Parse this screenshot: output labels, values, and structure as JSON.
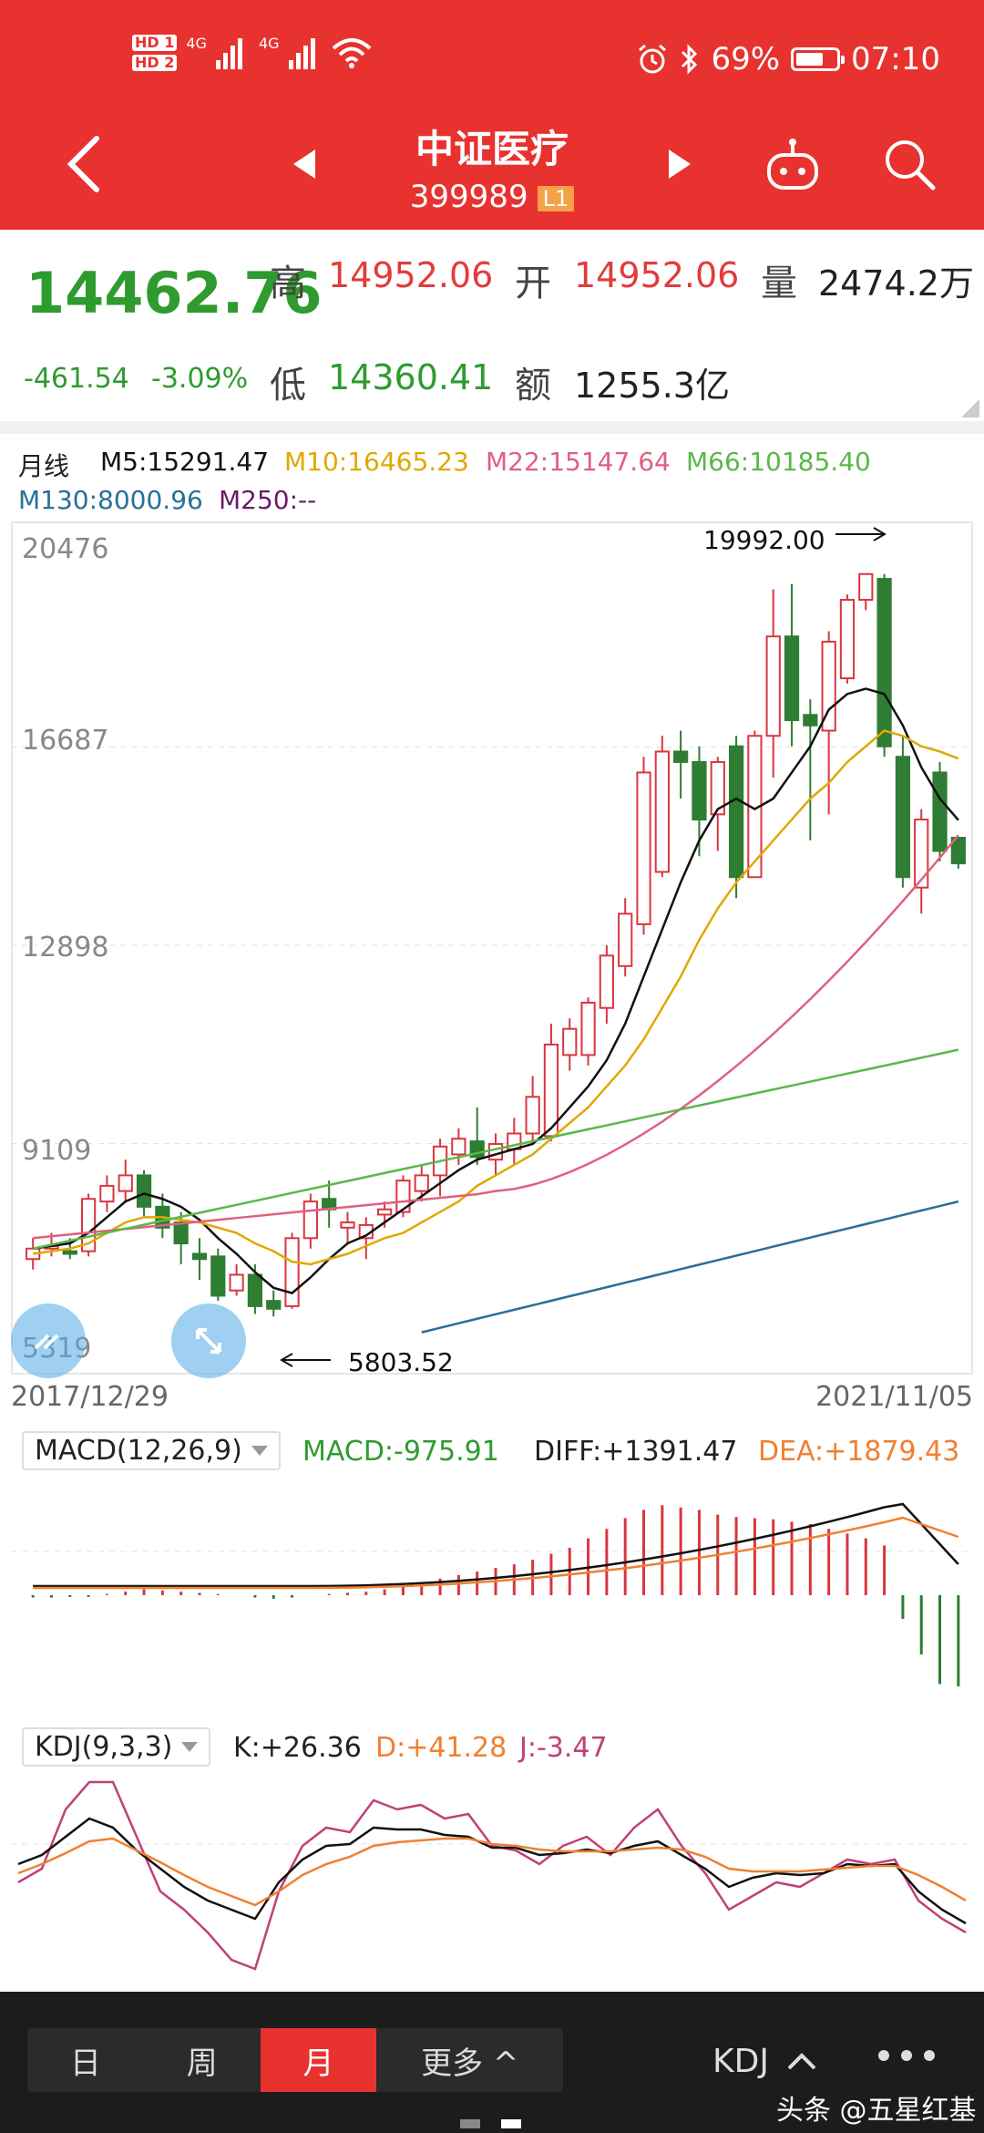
{
  "status": {
    "hd1": "HD 1",
    "hd2": "HD 2",
    "net1": "4G",
    "net2": "4G",
    "battery": "69%",
    "time": "07:10"
  },
  "header": {
    "title": "中证医疗",
    "code": "399989",
    "level": "L1"
  },
  "quote": {
    "price": "14462.76",
    "change": "-461.54",
    "change_pct": "-3.09%",
    "labels": {
      "high": "高",
      "open": "开",
      "volume": "量",
      "low": "低",
      "amount": "额"
    },
    "high": "14952.06",
    "open": "14952.06",
    "volume": "2474.2万",
    "low": "14360.41",
    "amount": "1255.3亿"
  },
  "main_chart": {
    "period": "月线",
    "ma": [
      {
        "label": "M5:15291.47",
        "color": "#111111"
      },
      {
        "label": "M10:16465.23",
        "color": "#e0a800"
      },
      {
        "label": "M22:15147.64",
        "color": "#e06080"
      },
      {
        "label": "M66:10185.40",
        "color": "#5ab84a"
      },
      {
        "label": "M130:8000.96",
        "color": "#2a6f97"
      },
      {
        "label": "M250:--",
        "color": "#6a1b6a"
      }
    ],
    "y_ticks": [
      "20476",
      "16687",
      "12898",
      "9109",
      "5319"
    ],
    "max_label": "19992.00",
    "min_label": "5803.52",
    "start_date": "2017/12/29",
    "end_date": "2021/11/05"
  },
  "macd": {
    "label": "MACD(12,26,9)",
    "macd": "MACD:-975.91",
    "diff": "DIFF:+1391.47",
    "dea": "DEA:+1879.43"
  },
  "kdj": {
    "label": "KDJ(9,3,3)",
    "k": "K:+26.36",
    "d": "D:+41.28",
    "j": "J:-3.47"
  },
  "chart_data": {
    "type": "candlestick",
    "y_range": [
      5319,
      20476
    ],
    "candles": [
      {
        "o": 6900,
        "c": 7100,
        "h": 7300,
        "l": 6700
      },
      {
        "o": 7100,
        "c": 7150,
        "h": 7400,
        "l": 6950
      },
      {
        "o": 7050,
        "c": 7000,
        "h": 7300,
        "l": 6900
      },
      {
        "o": 7050,
        "c": 8050,
        "h": 8150,
        "l": 6950
      },
      {
        "o": 8000,
        "c": 8300,
        "h": 8500,
        "l": 7800
      },
      {
        "o": 8200,
        "c": 8500,
        "h": 8800,
        "l": 8000
      },
      {
        "o": 8500,
        "c": 7900,
        "h": 8600,
        "l": 7700
      },
      {
        "o": 7900,
        "c": 7500,
        "h": 8150,
        "l": 7300
      },
      {
        "o": 7600,
        "c": 7200,
        "h": 7800,
        "l": 6800
      },
      {
        "o": 7000,
        "c": 6900,
        "h": 7300,
        "l": 6500
      },
      {
        "o": 6950,
        "c": 6200,
        "h": 7100,
        "l": 6100
      },
      {
        "o": 6300,
        "c": 6600,
        "h": 6800,
        "l": 6200
      },
      {
        "o": 6600,
        "c": 6000,
        "h": 6800,
        "l": 5850
      },
      {
        "o": 6100,
        "c": 5950,
        "h": 6300,
        "l": 5803.52
      },
      {
        "o": 6000,
        "c": 7300,
        "h": 7400,
        "l": 5950
      },
      {
        "o": 7300,
        "c": 8000,
        "h": 8150,
        "l": 7100
      },
      {
        "o": 8050,
        "c": 7850,
        "h": 8400,
        "l": 7500
      },
      {
        "o": 7500,
        "c": 7600,
        "h": 7800,
        "l": 7200
      },
      {
        "o": 7300,
        "c": 7550,
        "h": 7700,
        "l": 6900
      },
      {
        "o": 7750,
        "c": 7850,
        "h": 8000,
        "l": 7500
      },
      {
        "o": 7800,
        "c": 8400,
        "h": 8500,
        "l": 7700
      },
      {
        "o": 8200,
        "c": 8500,
        "h": 8700,
        "l": 8000
      },
      {
        "o": 8500,
        "c": 9050,
        "h": 9200,
        "l": 8100
      },
      {
        "o": 8900,
        "c": 9200,
        "h": 9400,
        "l": 8700
      },
      {
        "o": 9150,
        "c": 8850,
        "h": 9800,
        "l": 8700
      },
      {
        "o": 8800,
        "c": 9100,
        "h": 9300,
        "l": 8500
      },
      {
        "o": 9000,
        "c": 9300,
        "h": 9600,
        "l": 8700
      },
      {
        "o": 9300,
        "c": 10000,
        "h": 10400,
        "l": 9100
      },
      {
        "o": 9250,
        "c": 11000,
        "h": 11400,
        "l": 9150
      },
      {
        "o": 10800,
        "c": 11300,
        "h": 11500,
        "l": 10500
      },
      {
        "o": 10800,
        "c": 11800,
        "h": 11900,
        "l": 10600
      },
      {
        "o": 11700,
        "c": 12700,
        "h": 12900,
        "l": 11400
      },
      {
        "o": 12500,
        "c": 13500,
        "h": 13800,
        "l": 12300
      },
      {
        "o": 13300,
        "c": 16200,
        "h": 16500,
        "l": 13100
      },
      {
        "o": 14300,
        "c": 16600,
        "h": 16900,
        "l": 14200
      },
      {
        "o": 16600,
        "c": 16400,
        "h": 17000,
        "l": 15700
      },
      {
        "o": 16400,
        "c": 15300,
        "h": 16700,
        "l": 14600
      },
      {
        "o": 15400,
        "c": 16400,
        "h": 16500,
        "l": 14700
      },
      {
        "o": 16700,
        "c": 14200,
        "h": 16900,
        "l": 13800
      },
      {
        "o": 14200,
        "c": 16900,
        "h": 17000,
        "l": 14200
      },
      {
        "o": 16900,
        "c": 18800,
        "h": 19700,
        "l": 16100
      },
      {
        "o": 18800,
        "c": 17200,
        "h": 19800,
        "l": 16700
      },
      {
        "o": 17300,
        "c": 17100,
        "h": 17600,
        "l": 14900
      },
      {
        "o": 17000,
        "c": 18700,
        "h": 18900,
        "l": 15400
      },
      {
        "o": 18000,
        "c": 19500,
        "h": 19600,
        "l": 17900
      },
      {
        "o": 19500,
        "c": 19992,
        "h": 19992,
        "l": 19300
      },
      {
        "o": 19900,
        "c": 16700,
        "h": 19992,
        "l": 16500
      },
      {
        "o": 16500,
        "c": 14200,
        "h": 16900,
        "l": 14000
      },
      {
        "o": 14000,
        "c": 15300,
        "h": 15500,
        "l": 13500
      },
      {
        "o": 16200,
        "c": 14700,
        "h": 16400,
        "l": 14500
      },
      {
        "o": 14952.06,
        "c": 14462.76,
        "h": 14952.06,
        "l": 14360.41
      }
    ],
    "ma_lines": {
      "M5": [
        7100,
        7150,
        7200,
        7400,
        7700,
        8000,
        8150,
        8050,
        7900,
        7650,
        7300,
        7000,
        6650,
        6350,
        6250,
        6550,
        6900,
        7200,
        7350,
        7600,
        7850,
        8100,
        8350,
        8600,
        8800,
        8900,
        9000,
        9100,
        9400,
        9800,
        10200,
        10700,
        11400,
        12300,
        13200,
        14100,
        14900,
        15500,
        15700,
        15500,
        15700,
        16200,
        16700,
        17400,
        17700,
        17800,
        17700,
        17100,
        16300,
        15700,
        15290
      ],
      "M10": [
        7000,
        7050,
        7100,
        7200,
        7400,
        7600,
        7700,
        7700,
        7650,
        7600,
        7500,
        7400,
        7200,
        7050,
        6850,
        6800,
        6900,
        7000,
        7150,
        7300,
        7400,
        7600,
        7800,
        8000,
        8300,
        8500,
        8700,
        8900,
        9200,
        9500,
        9800,
        10200,
        10600,
        11100,
        11700,
        12300,
        13000,
        13600,
        14100,
        14500,
        14900,
        15300,
        15700,
        16000,
        16400,
        16700,
        17000,
        16900,
        16700,
        16600,
        16465
      ]
    },
    "macd_hist": [
      -20,
      -20,
      -15,
      -15,
      10,
      30,
      50,
      40,
      30,
      20,
      10,
      0,
      -20,
      -30,
      -20,
      0,
      10,
      20,
      30,
      50,
      80,
      110,
      140,
      170,
      200,
      230,
      260,
      300,
      350,
      400,
      480,
      560,
      650,
      720,
      760,
      740,
      720,
      680,
      660,
      650,
      640,
      620,
      600,
      560,
      520,
      480,
      420,
      -200,
      -500,
      -750,
      -975
    ]
  },
  "bottom": {
    "tabs": [
      "日",
      "周",
      "月",
      "更多 ^"
    ],
    "active": 2,
    "indicator": "KDJ",
    "watermark": "头条 @五星红基"
  }
}
